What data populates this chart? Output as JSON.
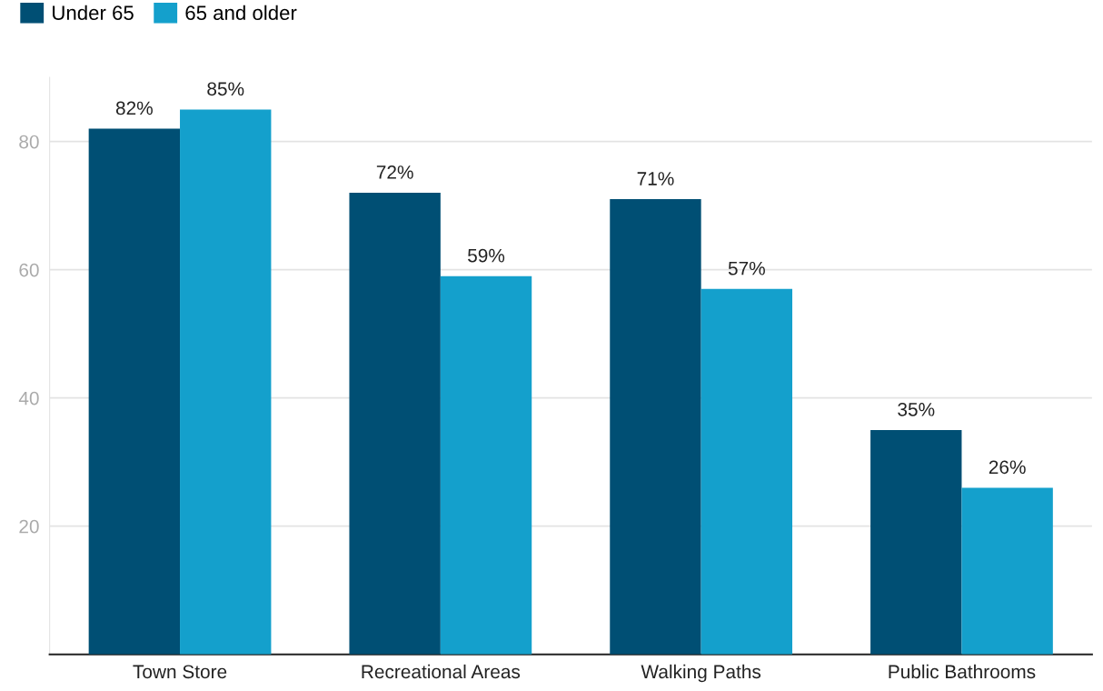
{
  "chart_data": {
    "type": "bar",
    "categories": [
      "Town Store",
      "Recreational Areas",
      "Walking Paths",
      "Public Bathrooms"
    ],
    "series": [
      {
        "name": "Under 65",
        "color": "#004f74",
        "values": [
          82,
          72,
          71,
          35
        ],
        "value_labels": [
          "82%",
          "72%",
          "71%",
          "35%"
        ]
      },
      {
        "name": "65 and older",
        "color": "#14a0cc",
        "values": [
          85,
          59,
          57,
          26
        ],
        "value_labels": [
          "85%",
          "59%",
          "57%",
          "26%"
        ]
      }
    ],
    "ylim": [
      0,
      90
    ],
    "yticks": [
      20,
      40,
      60,
      80
    ],
    "grid": "y",
    "legend": "top left"
  }
}
